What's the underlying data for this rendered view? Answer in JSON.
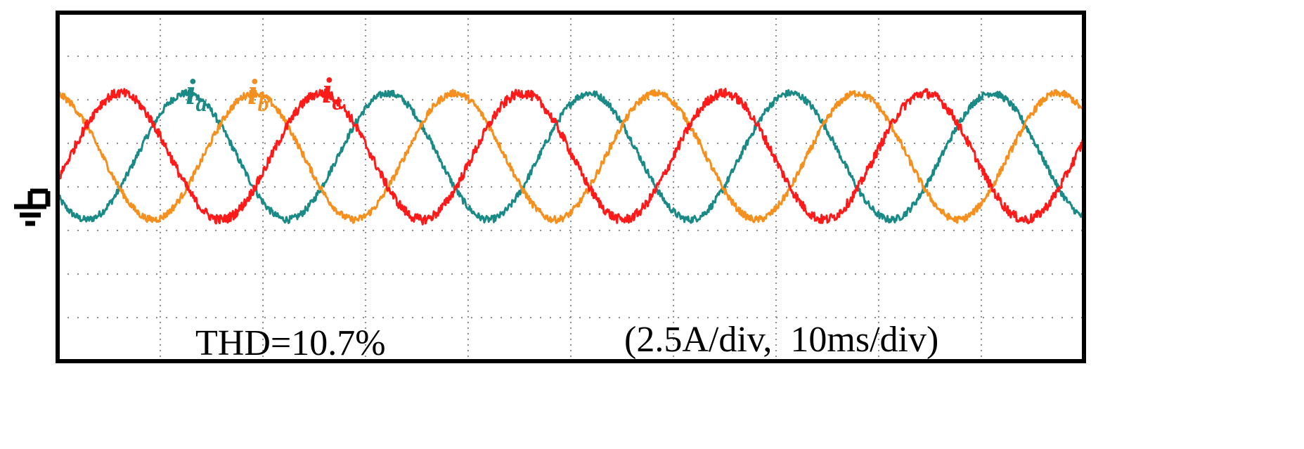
{
  "chart_data": {
    "type": "line",
    "title": "",
    "xlabel": "",
    "ylabel": "",
    "time_per_div_ms": 10,
    "amp_per_div_A": 2.5,
    "x_divisions": 10,
    "y_divisions": 8,
    "xlim_ms": [
      0,
      100
    ],
    "ylim_div": [
      -4,
      4
    ],
    "ground_marker_div": 0,
    "grid": true,
    "colors": {
      "ia": "#1a8a86",
      "ib": "#f5901e",
      "ic": "#ff1a1a",
      "frame": "#000000",
      "grid": "#8c8c8c"
    },
    "series": [
      {
        "name_main": "i",
        "name_sub": "a",
        "color": "#1a8a86",
        "amplitude_div": 1.45,
        "offset_div": 0.7,
        "period_ms": 19.6,
        "peak_ms": 12.6,
        "noise_div": 0.08
      },
      {
        "name_main": "i",
        "name_sub": "b",
        "color": "#f5901e",
        "amplitude_div": 1.45,
        "offset_div": 0.7,
        "period_ms": 19.6,
        "peak_ms": 19.1,
        "noise_div": 0.08
      },
      {
        "name_main": "i",
        "name_sub": "c",
        "color": "#ff1a1a",
        "amplitude_div": 1.45,
        "offset_div": 0.7,
        "period_ms": 19.6,
        "peak_ms": 6.1,
        "noise_div": 0.11
      }
    ],
    "annotations": {
      "thd": "THD=10.7%",
      "scale": "(2.5A/div,  10ms/div)"
    }
  }
}
